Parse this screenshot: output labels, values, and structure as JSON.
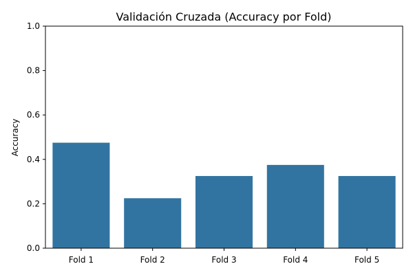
{
  "chart_data": {
    "type": "bar",
    "title": "Validación Cruzada (Accuracy por Fold)",
    "xlabel": "",
    "ylabel": "Accuracy",
    "categories": [
      "Fold 1",
      "Fold 2",
      "Fold 3",
      "Fold 4",
      "Fold 5"
    ],
    "values": [
      0.475,
      0.225,
      0.325,
      0.375,
      0.325
    ],
    "ylim": [
      0,
      1.0
    ],
    "yticks": [
      "0.0",
      "0.2",
      "0.4",
      "0.6",
      "0.8",
      "1.0"
    ],
    "grid": false,
    "legend": "none",
    "bar_color": "#3274a1"
  }
}
